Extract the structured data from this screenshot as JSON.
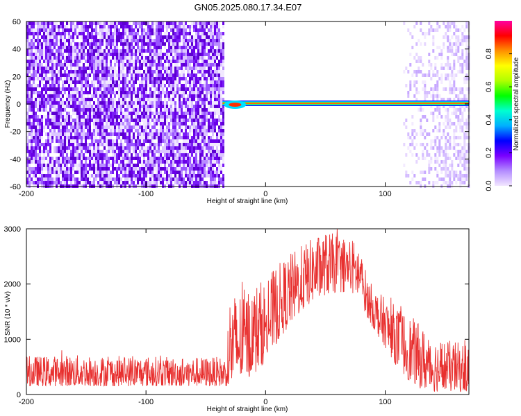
{
  "title": "GN05.2025.080.17.34.E07",
  "colors": {
    "snr_line": "#e8302f",
    "spectro_noise": "#6a00e8",
    "background": "#ffffff"
  },
  "colormap": {
    "name": "rainbow",
    "stops": [
      "#f2e6ff",
      "#b38cff",
      "#7a00ff",
      "#0000ff",
      "#00b0ff",
      "#00ffd0",
      "#00ff00",
      "#b0ff00",
      "#ffff00",
      "#ff9000",
      "#ff0000",
      "#ff00a0"
    ]
  },
  "chart_data": [
    {
      "type": "heatmap",
      "xlabel": "Height of straight line (km)",
      "ylabel": "Frequency (Hz)",
      "xlim": [
        -200,
        170
      ],
      "ylim": [
        -60,
        60
      ],
      "xticks": [
        -200,
        -100,
        0,
        100
      ],
      "yticks": [
        -60,
        -40,
        -20,
        0,
        20,
        40,
        60
      ],
      "colorbar": {
        "label": "Normalized spectral amplitude",
        "range": [
          0,
          1
        ],
        "ticks": [
          0.0,
          0.2,
          0.4,
          0.6,
          0.8
        ]
      },
      "regions": [
        {
          "description": "broadband noise",
          "x": [
            -200,
            -36
          ],
          "y": [
            -60,
            60
          ],
          "level": 0.15
        },
        {
          "description": "near-zero-frequency signal",
          "x": [
            -36,
            170
          ],
          "y": [
            -3,
            3
          ],
          "level": 0.9
        },
        {
          "description": "broadband noise",
          "x": [
            115,
            170
          ],
          "y": [
            -60,
            60
          ],
          "level": 0.05
        }
      ]
    },
    {
      "type": "line",
      "xlabel": "Height of straight line (km)",
      "ylabel": "SNR (10 * v/v)",
      "xlim": [
        -200,
        170
      ],
      "ylim": [
        0,
        3000
      ],
      "xticks": [
        -200,
        -100,
        0,
        100
      ],
      "yticks": [
        0,
        1000,
        2000,
        3000
      ],
      "series": [
        {
          "x": [
            -200,
            -180,
            -160,
            -140,
            -120,
            -100,
            -80,
            -60,
            -40,
            -32,
            -30,
            -20,
            -10,
            0,
            10,
            20,
            30,
            40,
            50,
            60,
            70,
            78,
            85,
            90,
            100,
            110,
            120,
            130,
            140,
            150,
            160,
            170
          ],
          "lower": [
            150,
            150,
            150,
            150,
            150,
            150,
            150,
            150,
            150,
            150,
            100,
            250,
            350,
            600,
            950,
            1250,
            1500,
            1700,
            1800,
            1850,
            1850,
            1750,
            1400,
            1200,
            850,
            500,
            250,
            100,
            50,
            50,
            50,
            50
          ],
          "upper": [
            700,
            700,
            720,
            700,
            700,
            700,
            680,
            680,
            680,
            680,
            1800,
            1900,
            2000,
            2100,
            2350,
            2550,
            2700,
            2850,
            2950,
            2900,
            2850,
            2750,
            2150,
            1950,
            1750,
            1600,
            1450,
            1250,
            1050,
            1000,
            950,
            950
          ]
        }
      ]
    }
  ]
}
